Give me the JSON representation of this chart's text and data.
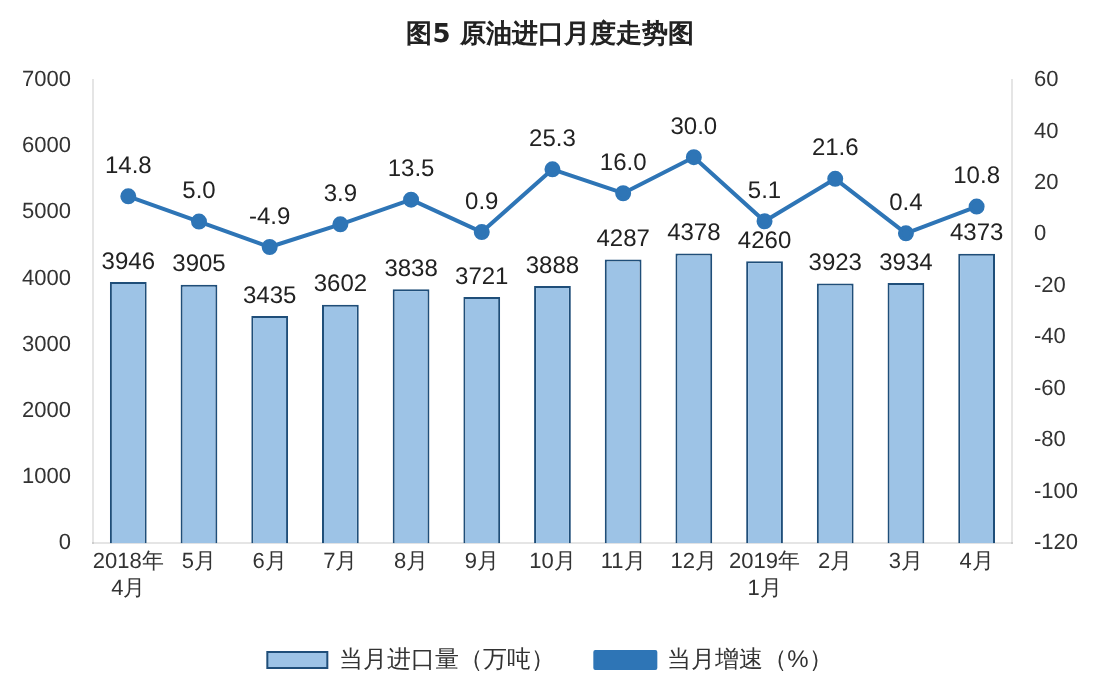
{
  "chart_data": {
    "type": "bar",
    "title": "图5  原油进口月度走势图",
    "categories": [
      "2018年\n4月",
      "5月",
      "6月",
      "7月",
      "8月",
      "9月",
      "10月",
      "11月",
      "12月",
      "2019年\n1月",
      "2月",
      "3月",
      "4月"
    ],
    "series": [
      {
        "name": "当月进口量（万吨）",
        "color": "#9dc3e6",
        "values": [
          3946,
          3905,
          3435,
          3602,
          3838,
          3721,
          3888,
          4287,
          4378,
          4260,
          3923,
          3934,
          4373
        ],
        "value_labels": [
          "3946",
          "3905",
          "3435",
          "3602",
          "3838",
          "3721",
          "3888",
          "4287",
          "4378",
          "4260",
          "3923",
          "3934",
          "4373"
        ]
      },
      {
        "name": "当月增速（%）",
        "type": "line",
        "axis": "y2",
        "color": "#2e75b6",
        "marker": "circle",
        "values": [
          14.8,
          5.0,
          -4.9,
          3.9,
          13.5,
          0.9,
          25.3,
          16.0,
          30.0,
          5.1,
          21.6,
          0.4,
          10.8
        ],
        "value_labels": [
          "14.8",
          "5.0",
          "-4.9",
          "3.9",
          "13.5",
          "0.9",
          "25.3",
          "16.0",
          "30.0",
          "5.1",
          "21.6",
          "0.4",
          "10.8"
        ]
      }
    ],
    "ylim": [
      0,
      7000
    ],
    "yticks": [
      0,
      1000,
      2000,
      3000,
      4000,
      5000,
      6000,
      7000
    ],
    "y2lim": [
      -120,
      60
    ],
    "y2ticks": [
      -120,
      -100,
      -80,
      -60,
      -40,
      -20,
      0,
      20,
      40,
      60
    ],
    "legend": "bottom",
    "grid": false
  }
}
